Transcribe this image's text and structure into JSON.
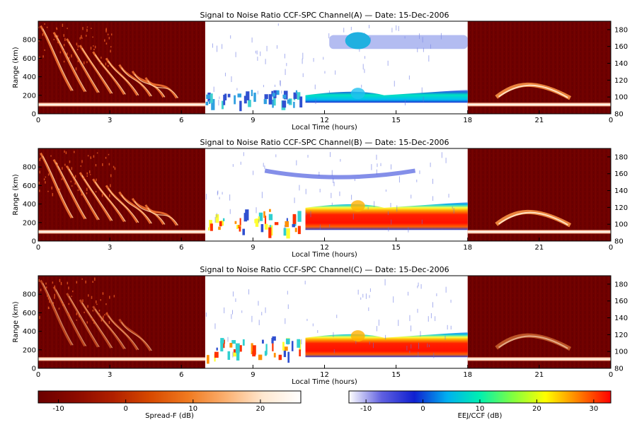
{
  "chart_data": [
    {
      "type": "heatmap",
      "title": "Signal to Noise Ratio CCF-SPC Channel(A) — Date: 15-Dec-2006",
      "xlabel": "Local Time (hours)",
      "ylabel": "Range (km)",
      "x_ticks": [
        "0",
        "3",
        "6",
        "9",
        "12",
        "15",
        "18",
        "21",
        "0"
      ],
      "y_ticks": [
        "0",
        "200",
        "400",
        "600",
        "800"
      ],
      "y2_ticks": [
        "80",
        "100",
        "120",
        "140",
        "160",
        "180"
      ],
      "xlim": [
        0,
        24
      ],
      "ylim": [
        0,
        1000
      ],
      "y2lim": [
        80,
        190
      ],
      "segments": [
        {
          "name": "Spread-F",
          "x": [
            0,
            7
          ]
        },
        {
          "name": "EEJ/CCF",
          "x": [
            7,
            18
          ]
        },
        {
          "name": "Spread-F",
          "x": [
            18,
            24
          ]
        }
      ],
      "features": {
        "eej_low_band_km": [
          120,
          260
        ],
        "eej_high_band_km": [
          700,
          850
        ],
        "ground_echo_km": 100
      }
    },
    {
      "type": "heatmap",
      "title": "Signal to Noise Ratio CCF-SPC Channel(B) — Date: 15-Dec-2006",
      "xlabel": "Local Time (hours)",
      "ylabel": "Range (km)",
      "x_ticks": [
        "0",
        "3",
        "6",
        "9",
        "12",
        "15",
        "18",
        "21",
        "0"
      ],
      "y_ticks": [
        "0",
        "200",
        "400",
        "600",
        "800"
      ],
      "y2_ticks": [
        "80",
        "100",
        "120",
        "140",
        "160",
        "180"
      ],
      "xlim": [
        0,
        24
      ],
      "ylim": [
        0,
        1000
      ],
      "y2lim": [
        80,
        190
      ],
      "segments": [
        {
          "name": "Spread-F",
          "x": [
            0,
            7
          ]
        },
        {
          "name": "EEJ/CCF",
          "x": [
            7,
            18
          ]
        },
        {
          "name": "Spread-F",
          "x": [
            18,
            24
          ]
        }
      ],
      "features": {
        "eej_low_band_km": [
          120,
          420
        ],
        "eej_high_band_km": [
          620,
          760
        ],
        "ground_echo_km": 100
      }
    },
    {
      "type": "heatmap",
      "title": "Signal to Noise Ratio CCF-SPC Channel(C) — Date: 15-Dec-2006",
      "xlabel": "Local Time (hours)",
      "ylabel": "Range (km)",
      "x_ticks": [
        "0",
        "3",
        "6",
        "9",
        "12",
        "15",
        "18",
        "21",
        "0"
      ],
      "y_ticks": [
        "0",
        "200",
        "400",
        "600",
        "800"
      ],
      "y2_ticks": [
        "80",
        "100",
        "120",
        "140",
        "160",
        "180"
      ],
      "xlim": [
        0,
        24
      ],
      "ylim": [
        0,
        1000
      ],
      "y2lim": [
        80,
        190
      ],
      "segments": [
        {
          "name": "Spread-F",
          "x": [
            0,
            7
          ]
        },
        {
          "name": "EEJ/CCF",
          "x": [
            7,
            18
          ]
        },
        {
          "name": "Spread-F",
          "x": [
            18,
            24
          ]
        }
      ],
      "features": {
        "eej_low_band_km": [
          120,
          390
        ],
        "ground_echo_km": 100
      }
    }
  ],
  "colorbars": [
    {
      "label": "Spread-F (dB)",
      "ticks": [
        "-10",
        "0",
        "10",
        "20"
      ],
      "range": [
        -13,
        26
      ],
      "colors": [
        "#6b0000",
        "#8b0a00",
        "#b02000",
        "#d84a00",
        "#f07a20",
        "#fbb070",
        "#ffe8d0",
        "#ffffff"
      ]
    },
    {
      "label": "EEJ/CCF (dB)",
      "ticks": [
        "-10",
        "0",
        "10",
        "20",
        "30"
      ],
      "range": [
        -13,
        33
      ],
      "colors": [
        "#ffffff",
        "#6060e0",
        "#1020d0",
        "#00b0f0",
        "#00f0b0",
        "#80ff40",
        "#ffff00",
        "#ff8000",
        "#ff0000"
      ]
    }
  ]
}
